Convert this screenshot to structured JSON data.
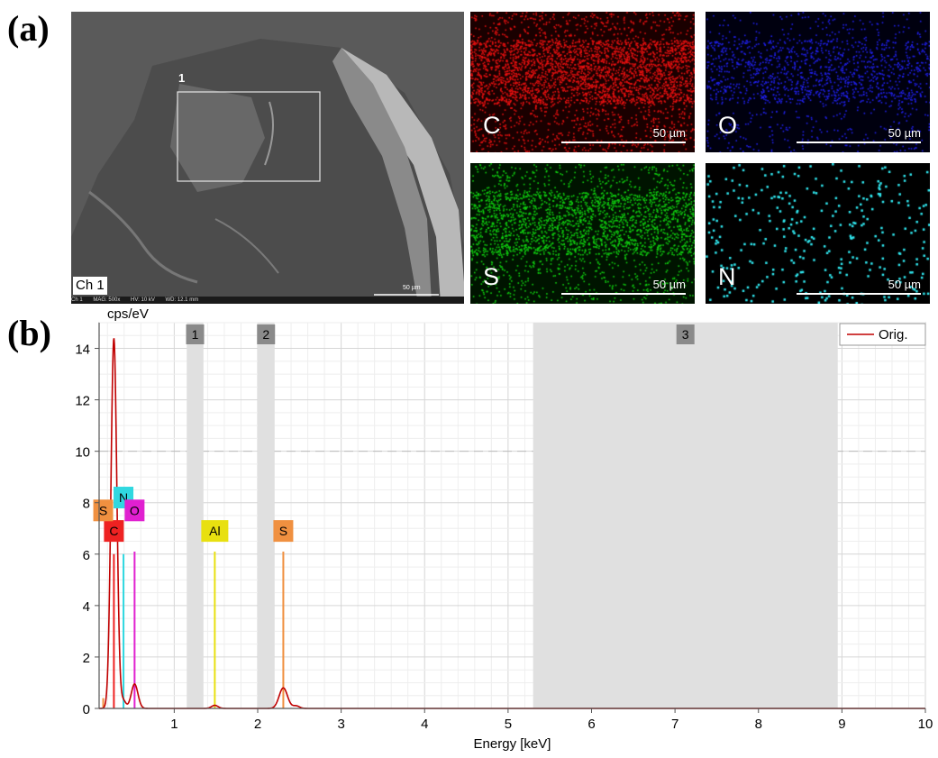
{
  "panels": {
    "a": "(a)",
    "b": "(b)"
  },
  "sem": {
    "channel": "Ch 1",
    "region_marker": "1",
    "footer": [
      "Ch 1",
      "MAG: 500x",
      "HV: 10 kV",
      "WD: 12.1 mm"
    ],
    "scale_label": "50 µm"
  },
  "maps": [
    {
      "element": "C",
      "scale": "50 µm",
      "color": "#e81010",
      "background": "#1a0000"
    },
    {
      "element": "O",
      "scale": "50 µm",
      "color": "#2020ee",
      "background": "#00000f"
    },
    {
      "element": "S",
      "scale": "50 µm",
      "color": "#10d010",
      "background": "#001400"
    },
    {
      "element": "N",
      "scale": "50 µm",
      "color": "#30e8f0",
      "background": "#000000"
    }
  ],
  "chart_data": {
    "type": "line",
    "xlabel": "Energy [keV]",
    "ylabel": "cps/eV",
    "xlim": [
      0.1,
      10
    ],
    "ylim": [
      0,
      15
    ],
    "xticks": [
      "1",
      "2",
      "3",
      "4",
      "5",
      "6",
      "7",
      "8",
      "9",
      "10"
    ],
    "yticks": [
      "0",
      "2",
      "4",
      "6",
      "8",
      "10",
      "12",
      "14"
    ],
    "grid": true,
    "legend": {
      "position": "top-right",
      "entries": [
        "Orig."
      ]
    },
    "series": [
      {
        "name": "Orig.",
        "color": "#c00000",
        "peaks": [
          {
            "x": 0.277,
            "y": 14.4,
            "w": 0.035
          },
          {
            "x": 0.39,
            "y": 0.3,
            "w": 0.03
          },
          {
            "x": 0.525,
            "y": 0.95,
            "w": 0.04
          },
          {
            "x": 1.486,
            "y": 0.12,
            "w": 0.04
          },
          {
            "x": 2.307,
            "y": 0.8,
            "w": 0.05
          },
          {
            "x": 2.46,
            "y": 0.1,
            "w": 0.04
          }
        ]
      }
    ],
    "element_markers": [
      {
        "label": "C",
        "x": 0.277,
        "height": 6.0,
        "color": "#ee2222",
        "tag_y": 6.9
      },
      {
        "label": "S",
        "x": 0.149,
        "height": 0.4,
        "color": "#f09040",
        "tag_y": 7.7
      },
      {
        "label": "N",
        "x": 0.392,
        "height": 6.0,
        "color": "#30d8e0",
        "tag_y": 8.2
      },
      {
        "label": "O",
        "x": 0.525,
        "height": 6.1,
        "color": "#e020d0",
        "tag_y": 7.7
      },
      {
        "label": "Al",
        "x": 1.486,
        "height": 6.1,
        "color": "#e8e010",
        "tag_y": 6.9
      },
      {
        "label": "S",
        "x": 2.307,
        "height": 6.1,
        "color": "#f09040",
        "tag_y": 6.9
      }
    ],
    "regions": [
      {
        "label": "1",
        "x0": 1.15,
        "x1": 1.35
      },
      {
        "label": "2",
        "x0": 2.0,
        "x1": 2.2
      },
      {
        "label": "3",
        "x0": 5.3,
        "x1": 8.95
      }
    ]
  }
}
